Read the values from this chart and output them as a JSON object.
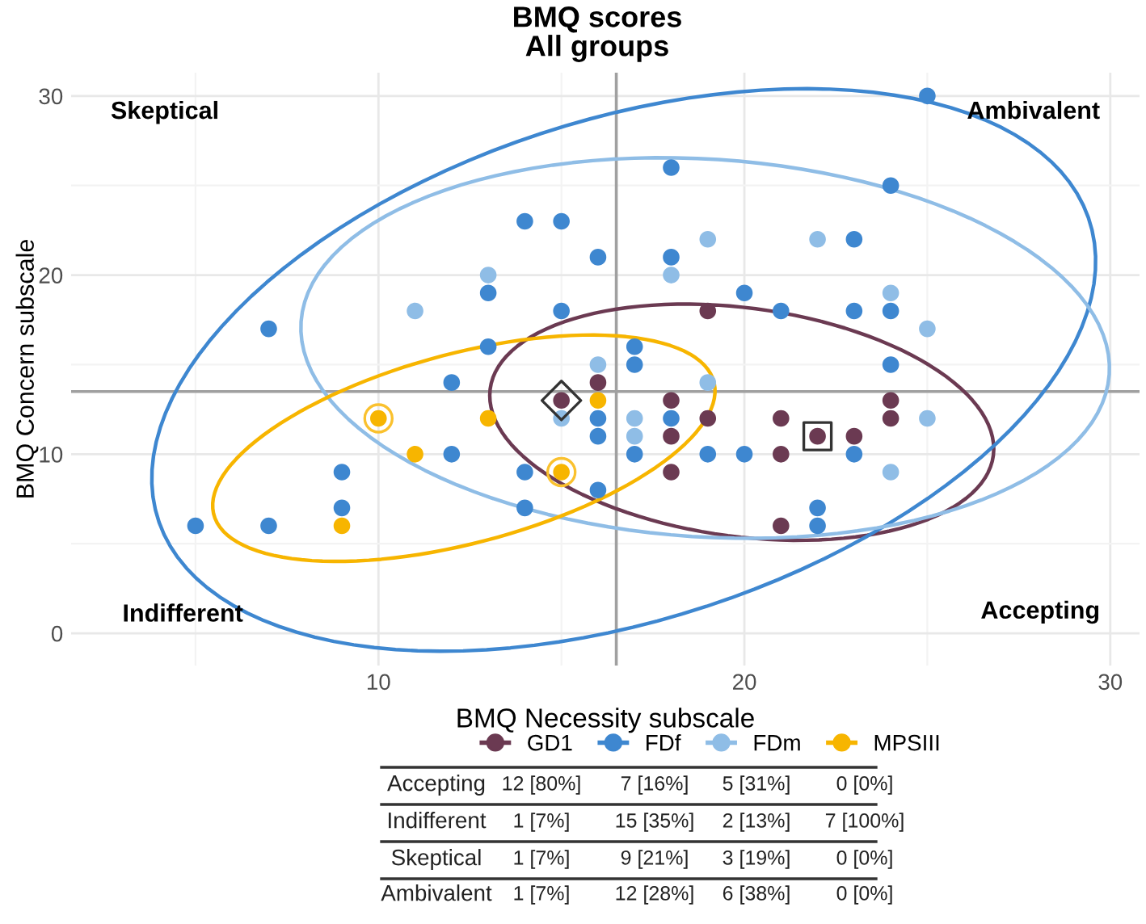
{
  "chart_data": {
    "type": "scatter",
    "title": "BMQ scores",
    "subtitle": "All groups",
    "xlabel": "BMQ Necessity subscale",
    "ylabel": "BMQ Concern subscale",
    "xlim": [
      1.6,
      30.8
    ],
    "ylim": [
      -1.8,
      31.3
    ],
    "xticks": [
      10,
      20,
      30
    ],
    "yticks": [
      0,
      10,
      20,
      30
    ],
    "grid": true,
    "marker": "circle",
    "legend": "bottom",
    "ref_lines": [
      {
        "axis": "x",
        "value": 16.5,
        "color": "#a0a0a0"
      },
      {
        "axis": "y",
        "value": 13.5,
        "color": "#a0a0a0"
      }
    ],
    "series": [
      {
        "name": "GD1",
        "color": "#6b3a52",
        "x": [
          16,
          15,
          18,
          24,
          19,
          19,
          21,
          24,
          18,
          22,
          23,
          21,
          18,
          21
        ],
        "values": [
          14,
          13,
          13,
          13,
          18,
          12,
          12,
          12,
          11,
          11,
          11,
          10,
          9,
          6
        ]
      },
      {
        "name": "FDf",
        "color": "#3e87d0",
        "x": [
          14,
          15,
          16,
          13,
          15,
          7,
          13,
          12,
          25,
          18,
          24,
          18,
          23,
          20,
          21,
          23,
          24,
          17,
          17,
          24,
          16,
          16,
          12,
          9,
          14,
          16,
          9,
          14,
          5,
          7,
          18,
          17,
          19,
          20,
          23,
          22,
          22
        ],
        "values": [
          23,
          23,
          21,
          19,
          18,
          17,
          16,
          14,
          30,
          26,
          25,
          21,
          22,
          19,
          18,
          18,
          18,
          16,
          15,
          15,
          12,
          11,
          10,
          9,
          9,
          8,
          7,
          7,
          6,
          6,
          12,
          10,
          10,
          10,
          10,
          7,
          6
        ]
      },
      {
        "name": "FDm",
        "color": "#8fbde6",
        "x": [
          13,
          11,
          16,
          18,
          19,
          22,
          24,
          25,
          19,
          15,
          17,
          25,
          17,
          24
        ],
        "values": [
          20,
          18,
          15,
          20,
          22,
          22,
          19,
          17,
          14,
          12,
          12,
          12,
          11,
          9
        ]
      },
      {
        "name": "MPSIII",
        "color": "#f7b500",
        "x": [
          16,
          10,
          13,
          11,
          15,
          9
        ],
        "values": [
          13,
          12,
          12,
          10,
          9,
          6
        ]
      },
      {
        "type": "scatter",
        "marker": "diamond",
        "color": "#333333",
        "x": [
          15
        ],
        "values": [
          13
        ]
      },
      {
        "type": "scatter",
        "marker": "square",
        "color": "#333333",
        "x": [
          22
        ],
        "values": [
          11
        ]
      },
      {
        "type": "scatter",
        "marker": "circle",
        "color": "#fac12e",
        "x": [
          10,
          15
        ],
        "values": [
          12,
          9
        ]
      }
    ],
    "annotations": [
      "Skeptical",
      "Ambivalent",
      "Indifferent",
      "Accepting",
      "Accepting",
      "12 [80%]",
      "7 [16%]",
      "5 [31%]",
      "0 [0%]",
      "Indifferent",
      "1 [7%]",
      "15 [35%]",
      "2 [13%]",
      "7 [100%]",
      "Skeptical",
      "1 [7%]",
      "9 [21%]",
      "3 [19%]",
      "0 [0%]",
      "Ambivalent",
      "1 [7%]",
      "12 [28%]",
      "6 [38%]",
      "0 [0%]"
    ]
  }
}
